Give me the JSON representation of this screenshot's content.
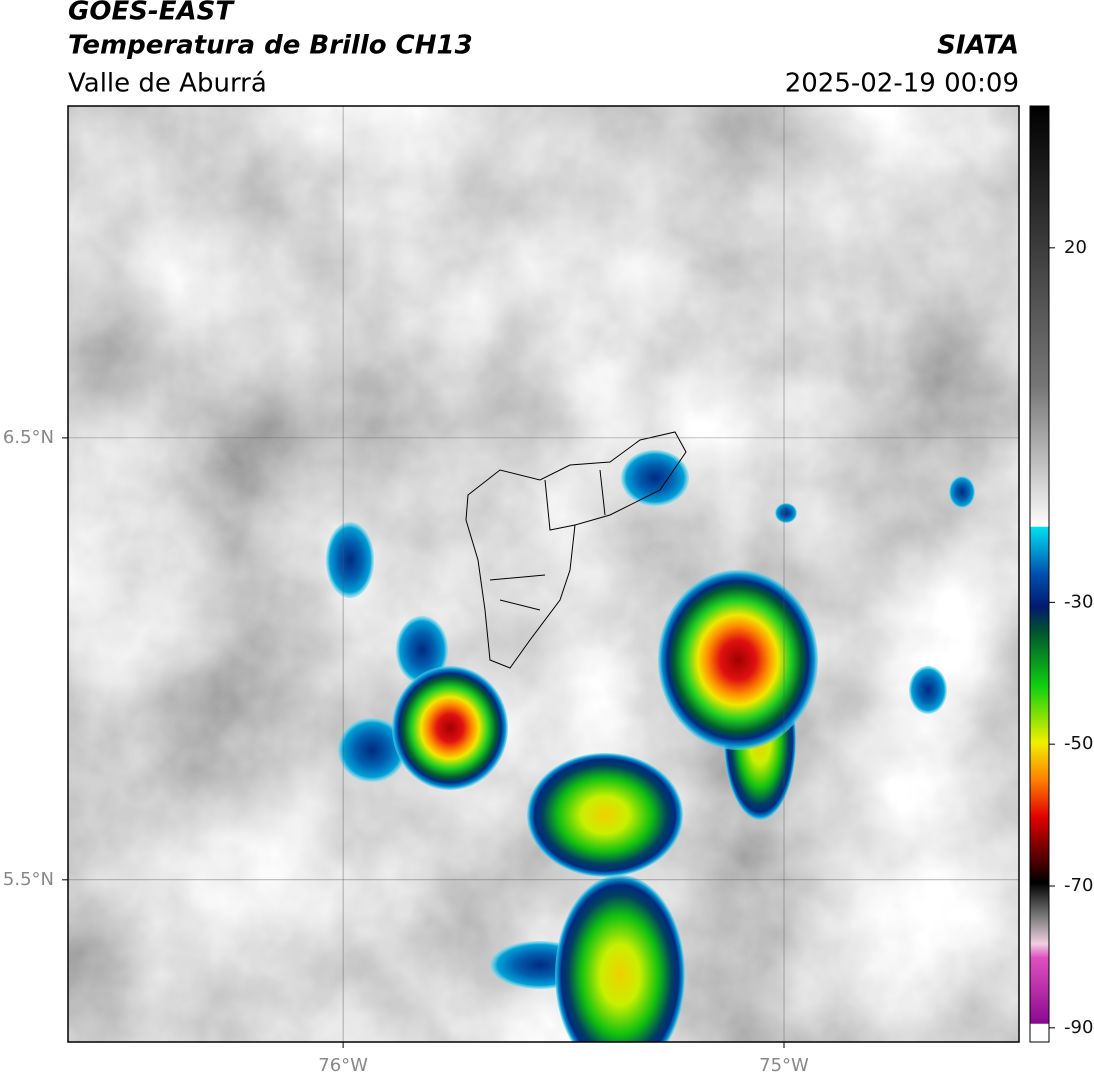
{
  "header": {
    "line1": "GOES-EAST",
    "title": "Temperatura de Brillo CH13",
    "source": "SIATA",
    "region": "Valle de Aburrá",
    "datetime": "2025-02-19 00:09"
  },
  "map": {
    "xlim": [
      -76.624,
      -74.467
    ],
    "ylim": [
      5.133,
      7.251
    ],
    "xticks": [
      {
        "value": -76,
        "label": "76°W"
      },
      {
        "value": -75,
        "label": "75°W"
      }
    ],
    "yticks": [
      {
        "value": 6.5,
        "label": "6.5°N"
      },
      {
        "value": 5.5,
        "label": "5.5°N"
      }
    ],
    "grid": true
  },
  "colorbar": {
    "lim": [
      -92,
      40
    ],
    "ticks": [
      20,
      -30,
      -50,
      -70,
      -90
    ]
  }
}
